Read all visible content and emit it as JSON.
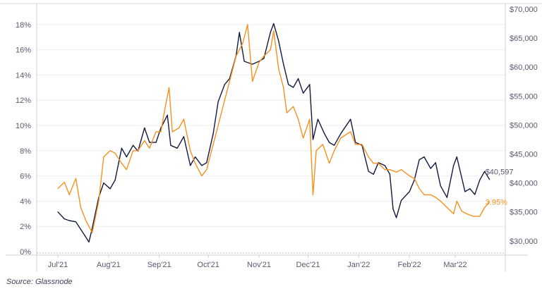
{
  "chart_data": {
    "type": "line",
    "source": "Source: Glassnode",
    "x_ticks": [
      {
        "label": "Jul'21",
        "date": "2021-07-01"
      },
      {
        "label": "Aug'21",
        "date": "2021-08-01"
      },
      {
        "label": "Sep'21",
        "date": "2021-09-01"
      },
      {
        "label": "Oct'21",
        "date": "2021-10-01"
      },
      {
        "label": "Nov'21",
        "date": "2021-11-01"
      },
      {
        "label": "Dec'21",
        "date": "2021-12-01"
      },
      {
        "label": "Jan'22",
        "date": "2022-01-01"
      },
      {
        "label": "Feb'22",
        "date": "2022-02-01"
      },
      {
        "label": "Mar'22",
        "date": "2022-03-01"
      }
    ],
    "y_left": {
      "ticks": [
        "0%",
        "2%",
        "4%",
        "6%",
        "8%",
        "10%",
        "12%",
        "14%",
        "16%",
        "18%"
      ],
      "values": [
        0,
        2,
        4,
        6,
        8,
        10,
        12,
        14,
        16,
        18
      ],
      "range": [
        0,
        18.7
      ]
    },
    "y_right": {
      "ticks": [
        "$30,000",
        "$35,000",
        "$40,000",
        "$45,000",
        "$50,000",
        "$55,000",
        "$60,000",
        "$65,000",
        "$70,000"
      ],
      "values": [
        30000,
        35000,
        40000,
        45000,
        50000,
        55000,
        60000,
        65000,
        70000
      ],
      "range": [
        28200,
        70000
      ]
    },
    "grid": true,
    "colors": {
      "price": "#14193f",
      "rate": "#f7901e",
      "grid": "#eeeeee",
      "axis": "#d0d0d0"
    },
    "series": [
      {
        "axis": "right",
        "color": "#14193f",
        "end_label": "$40,597",
        "points": [
          [
            "2021-07-01",
            35000
          ],
          [
            "2021-07-05",
            33800
          ],
          [
            "2021-07-08",
            33500
          ],
          [
            "2021-07-12",
            33300
          ],
          [
            "2021-07-15",
            32000
          ],
          [
            "2021-07-20",
            29800
          ],
          [
            "2021-07-22",
            32200
          ],
          [
            "2021-07-26",
            37500
          ],
          [
            "2021-07-29",
            40000
          ],
          [
            "2021-08-02",
            39000
          ],
          [
            "2021-08-05",
            40500
          ],
          [
            "2021-08-09",
            46000
          ],
          [
            "2021-08-12",
            44500
          ],
          [
            "2021-08-16",
            46500
          ],
          [
            "2021-08-19",
            45500
          ],
          [
            "2021-08-23",
            49500
          ],
          [
            "2021-08-26",
            47000
          ],
          [
            "2021-08-30",
            47000
          ],
          [
            "2021-09-02",
            49500
          ],
          [
            "2021-09-06",
            51700
          ],
          [
            "2021-09-08",
            46500
          ],
          [
            "2021-09-12",
            46000
          ],
          [
            "2021-09-16",
            48000
          ],
          [
            "2021-09-20",
            43000
          ],
          [
            "2021-09-23",
            44500
          ],
          [
            "2021-09-27",
            43000
          ],
          [
            "2021-09-30",
            43500
          ],
          [
            "2021-10-04",
            48500
          ],
          [
            "2021-10-07",
            54000
          ],
          [
            "2021-10-11",
            57000
          ],
          [
            "2021-10-14",
            58000
          ],
          [
            "2021-10-18",
            62000
          ],
          [
            "2021-10-20",
            66000
          ],
          [
            "2021-10-23",
            61000
          ],
          [
            "2021-10-28",
            60500
          ],
          [
            "2021-11-01",
            61000
          ],
          [
            "2021-11-04",
            61500
          ],
          [
            "2021-11-08",
            66000
          ],
          [
            "2021-11-10",
            67500
          ],
          [
            "2021-11-13",
            64500
          ],
          [
            "2021-11-16",
            60500
          ],
          [
            "2021-11-19",
            57000
          ],
          [
            "2021-11-22",
            56500
          ],
          [
            "2021-11-25",
            58000
          ],
          [
            "2021-11-28",
            55500
          ],
          [
            "2021-12-02",
            57000
          ],
          [
            "2021-12-04",
            47500
          ],
          [
            "2021-12-07",
            51000
          ],
          [
            "2021-12-11",
            48500
          ],
          [
            "2021-12-14",
            47000
          ],
          [
            "2021-12-17",
            46500
          ],
          [
            "2021-12-21",
            48500
          ],
          [
            "2021-12-27",
            51000
          ],
          [
            "2021-12-30",
            47000
          ],
          [
            "2022-01-03",
            46500
          ],
          [
            "2022-01-07",
            42000
          ],
          [
            "2022-01-10",
            41500
          ],
          [
            "2022-01-13",
            43500
          ],
          [
            "2022-01-17",
            43000
          ],
          [
            "2022-01-20",
            41500
          ],
          [
            "2022-01-22",
            35500
          ],
          [
            "2022-01-24",
            34000
          ],
          [
            "2022-01-27",
            37000
          ],
          [
            "2022-02-01",
            38500
          ],
          [
            "2022-02-04",
            40500
          ],
          [
            "2022-02-07",
            44000
          ],
          [
            "2022-02-10",
            44500
          ],
          [
            "2022-02-14",
            42500
          ],
          [
            "2022-02-17",
            43500
          ],
          [
            "2022-02-20",
            39500
          ],
          [
            "2022-02-24",
            37500
          ],
          [
            "2022-02-28",
            43000
          ],
          [
            "2022-03-02",
            44500
          ],
          [
            "2022-03-07",
            38500
          ],
          [
            "2022-03-10",
            39000
          ],
          [
            "2022-03-13",
            38000
          ],
          [
            "2022-03-16",
            40500
          ],
          [
            "2022-03-19",
            42000
          ],
          [
            "2022-03-22",
            40597
          ]
        ]
      },
      {
        "axis": "left",
        "color": "#f7901e",
        "end_label": "3.95%",
        "points": [
          [
            "2021-07-01",
            5.0
          ],
          [
            "2021-07-05",
            5.5
          ],
          [
            "2021-07-08",
            4.5
          ],
          [
            "2021-07-12",
            5.8
          ],
          [
            "2021-07-15",
            3.5
          ],
          [
            "2021-07-18",
            2.5
          ],
          [
            "2021-07-22",
            1.5
          ],
          [
            "2021-07-26",
            4.0
          ],
          [
            "2021-07-29",
            7.5
          ],
          [
            "2021-08-02",
            8.0
          ],
          [
            "2021-08-05",
            7.8
          ],
          [
            "2021-08-09",
            7.0
          ],
          [
            "2021-08-12",
            6.5
          ],
          [
            "2021-08-16",
            8.0
          ],
          [
            "2021-08-19",
            8.0
          ],
          [
            "2021-08-23",
            8.8
          ],
          [
            "2021-08-26",
            8.2
          ],
          [
            "2021-08-30",
            9.5
          ],
          [
            "2021-09-02",
            9.5
          ],
          [
            "2021-09-04",
            11.0
          ],
          [
            "2021-09-07",
            13.0
          ],
          [
            "2021-09-09",
            9.5
          ],
          [
            "2021-09-13",
            9.8
          ],
          [
            "2021-09-16",
            10.5
          ],
          [
            "2021-09-20",
            8.0
          ],
          [
            "2021-09-23",
            7.0
          ],
          [
            "2021-09-27",
            6.0
          ],
          [
            "2021-09-30",
            6.5
          ],
          [
            "2021-10-04",
            8.5
          ],
          [
            "2021-10-07",
            10.0
          ],
          [
            "2021-10-11",
            12.0
          ],
          [
            "2021-10-14",
            13.5
          ],
          [
            "2021-10-18",
            15.5
          ],
          [
            "2021-10-22",
            16.5
          ],
          [
            "2021-10-25",
            18.0
          ],
          [
            "2021-10-28",
            13.5
          ],
          [
            "2021-11-01",
            15.0
          ],
          [
            "2021-11-04",
            15.5
          ],
          [
            "2021-11-08",
            16.0
          ],
          [
            "2021-11-10",
            17.5
          ],
          [
            "2021-11-13",
            14.5
          ],
          [
            "2021-11-16",
            13.0
          ],
          [
            "2021-11-18",
            11.0
          ],
          [
            "2021-11-22",
            11.5
          ],
          [
            "2021-11-25",
            10.5
          ],
          [
            "2021-11-28",
            9.0
          ],
          [
            "2021-12-02",
            10.5
          ],
          [
            "2021-12-04",
            4.5
          ],
          [
            "2021-12-06",
            8.0
          ],
          [
            "2021-12-10",
            8.5
          ],
          [
            "2021-12-14",
            7.0
          ],
          [
            "2021-12-17",
            8.0
          ],
          [
            "2021-12-21",
            9.0
          ],
          [
            "2021-12-27",
            9.5
          ],
          [
            "2021-12-30",
            8.5
          ],
          [
            "2022-01-03",
            8.5
          ],
          [
            "2022-01-07",
            7.5
          ],
          [
            "2022-01-10",
            7.0
          ],
          [
            "2022-01-13",
            7.0
          ],
          [
            "2022-01-17",
            6.5
          ],
          [
            "2022-01-20",
            6.5
          ],
          [
            "2022-01-24",
            6.3
          ],
          [
            "2022-01-27",
            6.5
          ],
          [
            "2022-02-01",
            6.0
          ],
          [
            "2022-02-04",
            5.8
          ],
          [
            "2022-02-07",
            5.0
          ],
          [
            "2022-02-10",
            4.5
          ],
          [
            "2022-02-14",
            4.5
          ],
          [
            "2022-02-17",
            4.3
          ],
          [
            "2022-02-20",
            4.0
          ],
          [
            "2022-02-24",
            3.5
          ],
          [
            "2022-02-28",
            3.0
          ],
          [
            "2022-03-02",
            4.0
          ],
          [
            "2022-03-05",
            3.2
          ],
          [
            "2022-03-08",
            3.0
          ],
          [
            "2022-03-12",
            2.8
          ],
          [
            "2022-03-16",
            2.8
          ],
          [
            "2022-03-19",
            3.5
          ],
          [
            "2022-03-22",
            3.95
          ]
        ]
      }
    ]
  }
}
